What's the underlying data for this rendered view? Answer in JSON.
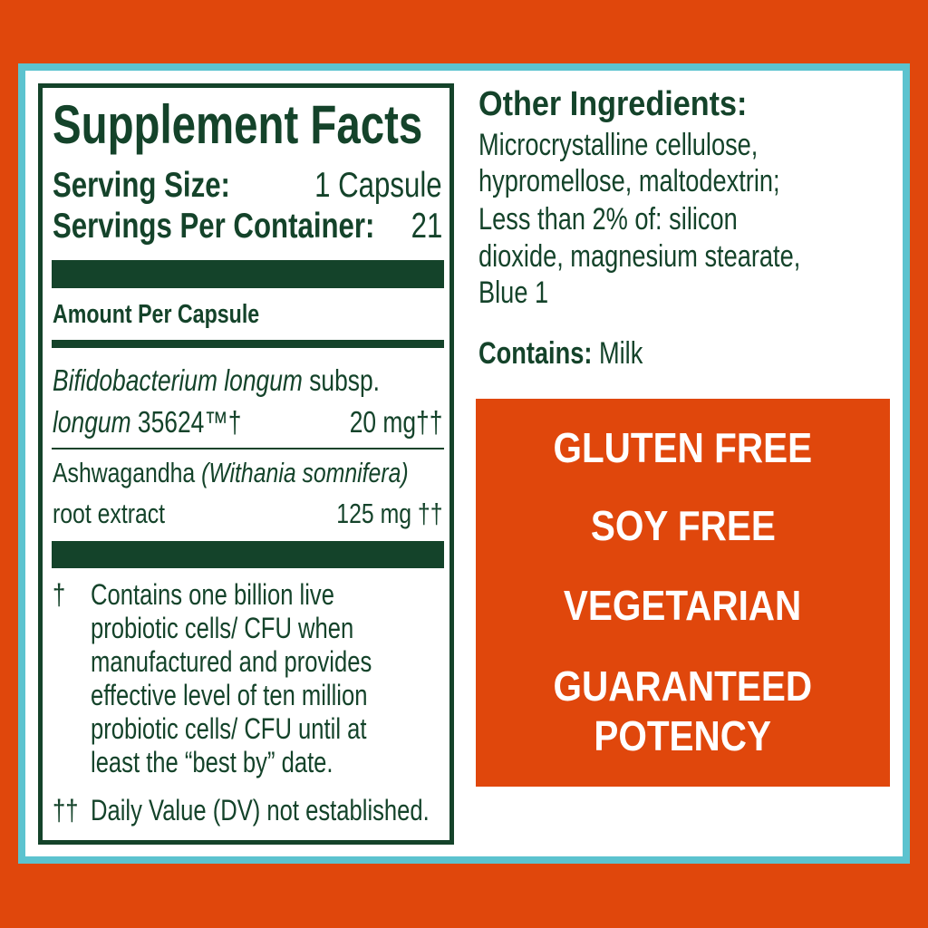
{
  "colors": {
    "background": "#e0470c",
    "frame": "#5cc3cf",
    "text": "#14432a",
    "badge_box": "#e0470c",
    "badge_text": "#ffffff"
  },
  "facts": {
    "title": "Supplement Facts",
    "serving_size_label": "Serving Size:",
    "serving_size_value": "1 Capsule",
    "servings_label": "Servings Per Container:",
    "servings_value": "21",
    "amount_header": "Amount Per Capsule",
    "ingredients": [
      {
        "name_italic": "Bifidobacterium longum",
        "name_rest": " subsp.",
        "line2_italic": "longum",
        "line2_rest": " 35624™†",
        "amount": "20 mg††"
      },
      {
        "name_plain": "Ashwagandha ",
        "name_italic": "(Withania somnifera)",
        "line2_plain": "root extract",
        "amount": "125 mg ††"
      }
    ],
    "footnote1_symbol": "†",
    "footnote1_lines": [
      "Contains one billion live",
      "probiotic cells/ CFU when",
      "manufactured and provides",
      "effective level of ten million",
      "probiotic cells/ CFU until at",
      "least the “best by” date."
    ],
    "footnote2_symbol": "††",
    "footnote2_text": "Daily Value (DV) not established."
  },
  "other": {
    "heading": "Other Ingredients:",
    "lines": [
      "Microcrystalline cellulose,",
      "hypromellose, maltodextrin;",
      "Less than 2% of: silicon",
      "dioxide, magnesium stearate,",
      "Blue 1"
    ],
    "contains_label": "Contains:",
    "contains_value": " Milk"
  },
  "badges": [
    "GLUTEN FREE",
    "SOY FREE",
    "VEGETARIAN",
    "GUARANTEED",
    "POTENCY"
  ]
}
